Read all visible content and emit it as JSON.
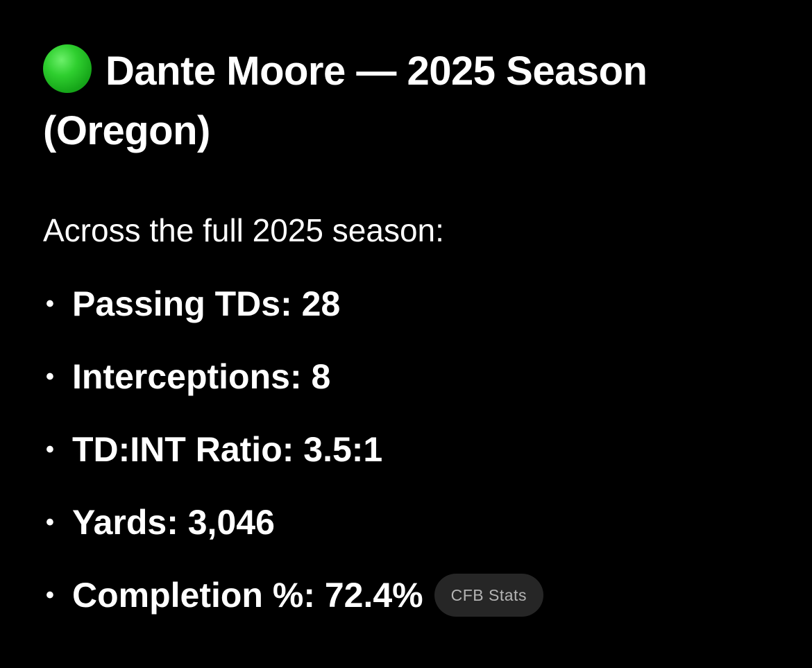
{
  "title": "Dante Moore — 2025 Season (Oregon)",
  "status_icon": "green-circle-icon",
  "status_color": "#22c12b",
  "intro": "Across the full 2025 season:",
  "stats": [
    {
      "bullet": "•",
      "text": "Passing TDs: 28"
    },
    {
      "bullet": "•",
      "text": "Interceptions: 8"
    },
    {
      "bullet": "•",
      "text": "TD:INT Ratio: 3.5:1"
    },
    {
      "bullet": "•",
      "text": "Yards: 3,046"
    },
    {
      "bullet": "•",
      "text": "Completion %: 72.4%"
    }
  ],
  "source_label": "CFB Stats"
}
